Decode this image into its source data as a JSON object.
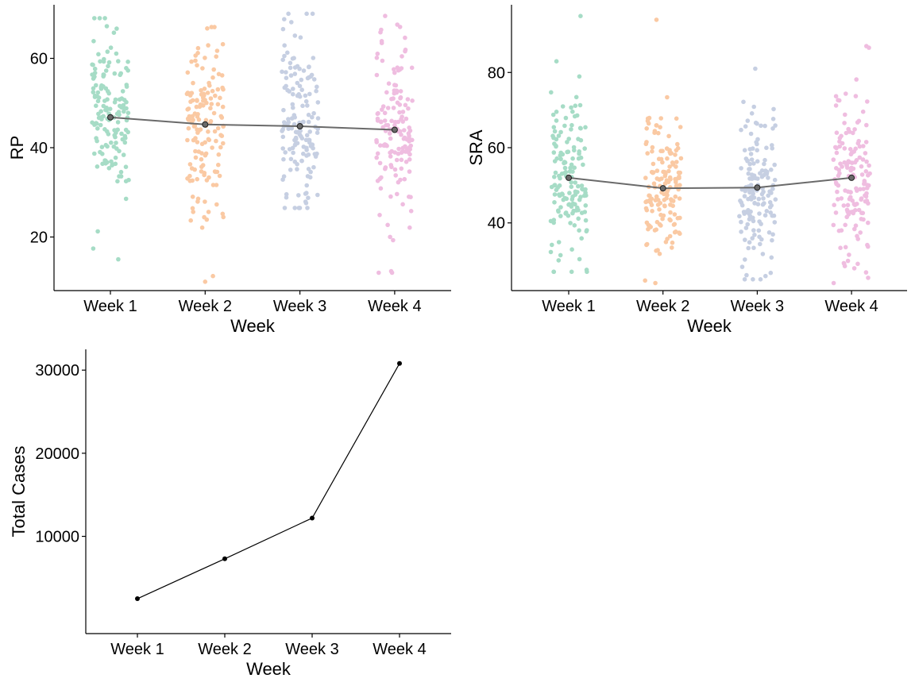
{
  "colors": {
    "week_points": [
      "#a6dcc6",
      "#fac9a3",
      "#c6cfe2",
      "#efbde0"
    ],
    "mean_line": "#6a6a6a",
    "mean_point_fill": "#6a6a6a",
    "cases_line": "#000000",
    "axis": "#000000"
  },
  "chart_data": [
    {
      "type": "scatter",
      "subtype": "jittered strip plot with mean line",
      "xlabel": "Week",
      "ylabel": "RP",
      "categories": [
        "Week 1",
        "Week 2",
        "Week 3",
        "Week 4"
      ],
      "yticks": [
        20,
        40,
        60
      ],
      "ylim": [
        8,
        72
      ],
      "grid": false,
      "legend": "none",
      "means": [
        46.8,
        45.2,
        44.8,
        44.0
      ],
      "spread": [
        {
          "min": 15,
          "max": 69,
          "center": 47,
          "sd": 9
        },
        {
          "min": 10,
          "max": 67,
          "center": 45,
          "sd": 10
        },
        {
          "min": 26.5,
          "max": 70,
          "center": 45,
          "sd": 10
        },
        {
          "min": 12,
          "max": 69.5,
          "center": 44,
          "sd": 11
        }
      ],
      "points_per_week": 150
    },
    {
      "type": "scatter",
      "subtype": "jittered strip plot with mean line",
      "xlabel": "Week",
      "ylabel": "SRA",
      "categories": [
        "Week 1",
        "Week 2",
        "Week 3",
        "Week 4"
      ],
      "yticks": [
        40,
        60,
        80
      ],
      "ylim": [
        22,
        98
      ],
      "grid": false,
      "legend": "none",
      "means": [
        52.0,
        49.2,
        49.4,
        52.0
      ],
      "spread": [
        {
          "min": 27,
          "max": 95,
          "center": 52,
          "sd": 11
        },
        {
          "min": 24,
          "max": 94,
          "center": 49,
          "sd": 11
        },
        {
          "min": 25,
          "max": 81,
          "center": 49,
          "sd": 11
        },
        {
          "min": 24,
          "max": 87,
          "center": 52,
          "sd": 11
        }
      ],
      "points_per_week": 150
    },
    {
      "type": "line",
      "xlabel": "Week",
      "ylabel": "Total Cases",
      "categories": [
        "Week 1",
        "Week 2",
        "Week 3",
        "Week 4"
      ],
      "values": [
        2500,
        7300,
        12200,
        30800
      ],
      "yticks": [
        10000,
        20000,
        30000
      ],
      "ylim": [
        -1700,
        32500
      ],
      "grid": false,
      "legend": "none"
    }
  ]
}
